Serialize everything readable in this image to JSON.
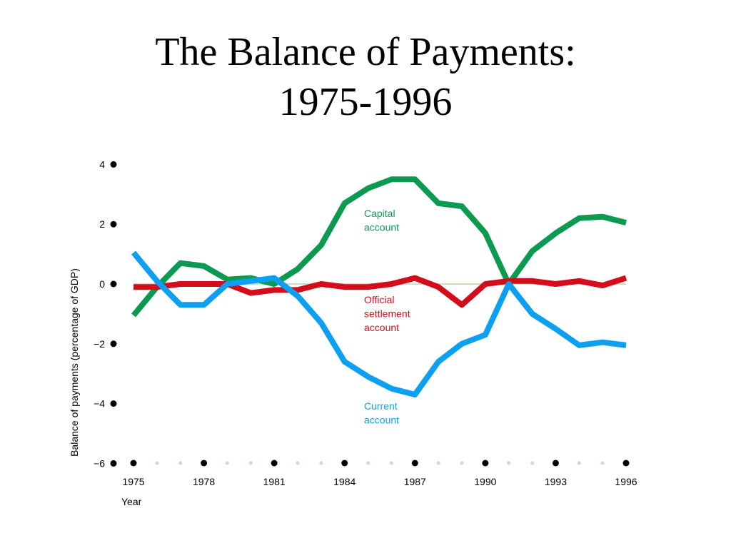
{
  "slide": {
    "title_line1": "The Balance of Payments:",
    "title_line2": "1975-1996"
  },
  "chart_data": {
    "type": "line",
    "title": "",
    "xlabel": "Year",
    "ylabel": "Balance of payments (percentage of GDP)",
    "xlim": [
      1974,
      1996
    ],
    "ylim": [
      -6,
      4
    ],
    "x_ticks": [
      1975,
      1978,
      1981,
      1984,
      1987,
      1990,
      1993,
      1996
    ],
    "x_tick_labels": [
      "1975",
      "1978",
      "1981",
      "1984",
      "1987",
      "1990",
      "1993",
      "1996"
    ],
    "y_ticks": [
      4,
      2,
      0,
      -2,
      -4,
      -6
    ],
    "y_tick_labels": [
      "4",
      "2",
      "0",
      "−2",
      "−4",
      "−6"
    ],
    "zero_line": true,
    "grid": false,
    "legend": "inline annotations",
    "x": [
      1975,
      1976,
      1977,
      1978,
      1979,
      1980,
      1981,
      1982,
      1983,
      1984,
      1985,
      1986,
      1987,
      1988,
      1989,
      1990,
      1991,
      1992,
      1993,
      1994,
      1995,
      1996
    ],
    "series": [
      {
        "name": "Capital account",
        "label_lines": [
          "Capital",
          "account"
        ],
        "color": "#0c9a50",
        "values": [
          -1.05,
          -0.1,
          0.7,
          0.6,
          0.15,
          0.2,
          0.0,
          0.5,
          1.3,
          2.7,
          3.2,
          3.5,
          3.5,
          2.7,
          2.6,
          1.7,
          0.0,
          1.1,
          1.7,
          2.2,
          2.25,
          2.05
        ]
      },
      {
        "name": "Official settlement account",
        "label_lines": [
          "Official",
          "settlement",
          "account"
        ],
        "color": "#d40c1c",
        "values": [
          -0.1,
          -0.1,
          0.0,
          0.0,
          0.0,
          -0.3,
          -0.2,
          -0.2,
          0.0,
          -0.1,
          -0.1,
          0.0,
          0.2,
          -0.1,
          -0.7,
          0.0,
          0.1,
          0.1,
          0.0,
          0.1,
          -0.05,
          0.2
        ]
      },
      {
        "name": "Current account",
        "label_lines": [
          "Current",
          "account"
        ],
        "color": "#0ea0f0",
        "values": [
          1.05,
          0.1,
          -0.7,
          -0.7,
          0.0,
          0.1,
          0.2,
          -0.4,
          -1.3,
          -2.6,
          -3.1,
          -3.5,
          -3.7,
          -2.6,
          -2.0,
          -1.7,
          0.0,
          -1.0,
          -1.5,
          -2.05,
          -1.95,
          -2.05
        ]
      }
    ]
  }
}
